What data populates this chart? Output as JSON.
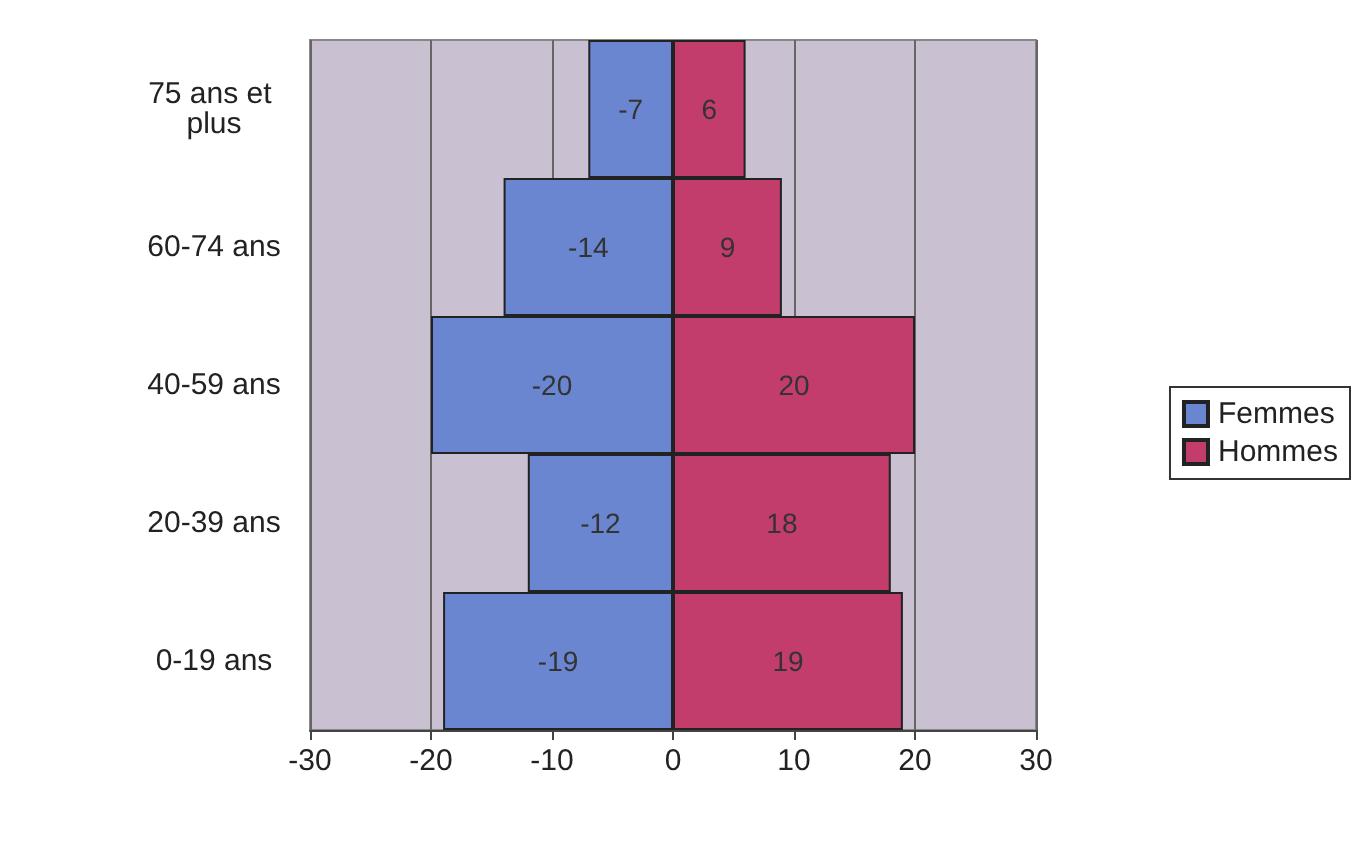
{
  "chart_data": {
    "type": "bar",
    "orientation": "horizontal",
    "stacked": true,
    "categories": [
      "75 ans et plus",
      "60-74 ans",
      "40-59 ans",
      "20-39 ans",
      "0-19 ans"
    ],
    "series": [
      {
        "name": "Femmes",
        "color": "#6a86d0",
        "values": [
          -7,
          -14,
          -20,
          -12,
          -19
        ]
      },
      {
        "name": "Hommes",
        "color": "#c23c6c",
        "values": [
          6,
          9,
          20,
          18,
          19
        ]
      }
    ],
    "xlim": [
      -30,
      30
    ],
    "xticks": [
      -30,
      -20,
      -10,
      0,
      10,
      20,
      30
    ],
    "grid": "x",
    "legend": "right",
    "data_labels": true
  }
}
